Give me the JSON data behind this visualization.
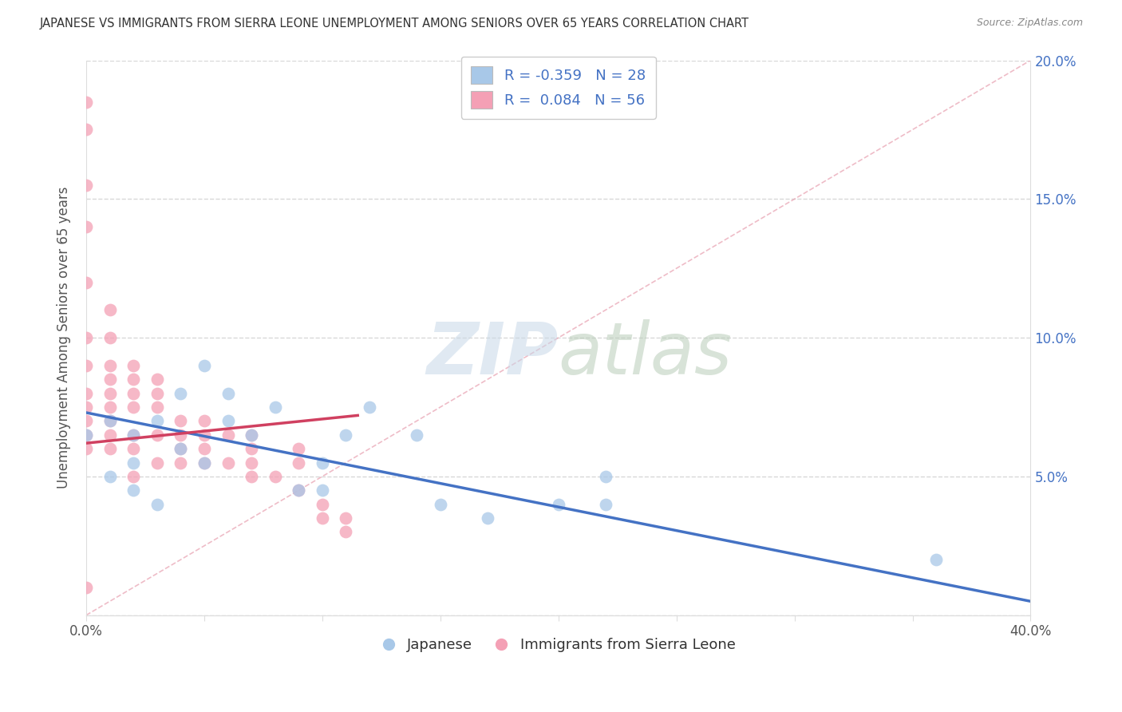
{
  "title": "JAPANESE VS IMMIGRANTS FROM SIERRA LEONE UNEMPLOYMENT AMONG SENIORS OVER 65 YEARS CORRELATION CHART",
  "source": "Source: ZipAtlas.com",
  "ylabel": "Unemployment Among Seniors over 65 years",
  "xlim": [
    0.0,
    0.4
  ],
  "ylim": [
    0.0,
    0.2
  ],
  "legend_label_blue": "R = -0.359   N = 28",
  "legend_label_pink": "R =  0.084   N = 56",
  "legend_bottom_blue": "Japanese",
  "legend_bottom_pink": "Immigrants from Sierra Leone",
  "color_blue": "#a8c8e8",
  "color_pink": "#f4a0b5",
  "color_blue_line": "#4472c4",
  "color_pink_line": "#d04060",
  "watermark_zip": "ZIP",
  "watermark_atlas": "atlas",
  "japanese_x": [
    0.0,
    0.01,
    0.01,
    0.02,
    0.02,
    0.02,
    0.03,
    0.03,
    0.04,
    0.04,
    0.05,
    0.05,
    0.06,
    0.06,
    0.07,
    0.08,
    0.09,
    0.1,
    0.1,
    0.11,
    0.12,
    0.14,
    0.15,
    0.17,
    0.2,
    0.22,
    0.22,
    0.36
  ],
  "japanese_y": [
    0.065,
    0.07,
    0.05,
    0.065,
    0.055,
    0.045,
    0.07,
    0.04,
    0.08,
    0.06,
    0.09,
    0.055,
    0.08,
    0.07,
    0.065,
    0.075,
    0.045,
    0.055,
    0.045,
    0.065,
    0.075,
    0.065,
    0.04,
    0.035,
    0.04,
    0.05,
    0.04,
    0.02
  ],
  "sierraleon_x": [
    0.0,
    0.0,
    0.0,
    0.0,
    0.0,
    0.0,
    0.0,
    0.0,
    0.0,
    0.0,
    0.0,
    0.0,
    0.0,
    0.01,
    0.01,
    0.01,
    0.01,
    0.01,
    0.01,
    0.01,
    0.01,
    0.01,
    0.02,
    0.02,
    0.02,
    0.02,
    0.02,
    0.02,
    0.02,
    0.03,
    0.03,
    0.03,
    0.03,
    0.03,
    0.04,
    0.04,
    0.04,
    0.04,
    0.05,
    0.05,
    0.05,
    0.05,
    0.06,
    0.06,
    0.07,
    0.07,
    0.07,
    0.07,
    0.08,
    0.09,
    0.09,
    0.09,
    0.1,
    0.1,
    0.11,
    0.11
  ],
  "sierraleon_y": [
    0.185,
    0.175,
    0.155,
    0.14,
    0.12,
    0.1,
    0.09,
    0.08,
    0.075,
    0.07,
    0.065,
    0.06,
    0.01,
    0.11,
    0.1,
    0.09,
    0.085,
    0.08,
    0.075,
    0.07,
    0.065,
    0.06,
    0.09,
    0.085,
    0.08,
    0.075,
    0.065,
    0.06,
    0.05,
    0.085,
    0.08,
    0.075,
    0.065,
    0.055,
    0.07,
    0.065,
    0.06,
    0.055,
    0.07,
    0.065,
    0.06,
    0.055,
    0.065,
    0.055,
    0.065,
    0.06,
    0.055,
    0.05,
    0.05,
    0.06,
    0.055,
    0.045,
    0.04,
    0.035,
    0.035,
    0.03
  ],
  "blue_line_x0": 0.0,
  "blue_line_x1": 0.4,
  "blue_line_y0": 0.073,
  "blue_line_y1": 0.005,
  "pink_line_x0": 0.0,
  "pink_line_x1": 0.115,
  "pink_line_y0": 0.062,
  "pink_line_y1": 0.072
}
